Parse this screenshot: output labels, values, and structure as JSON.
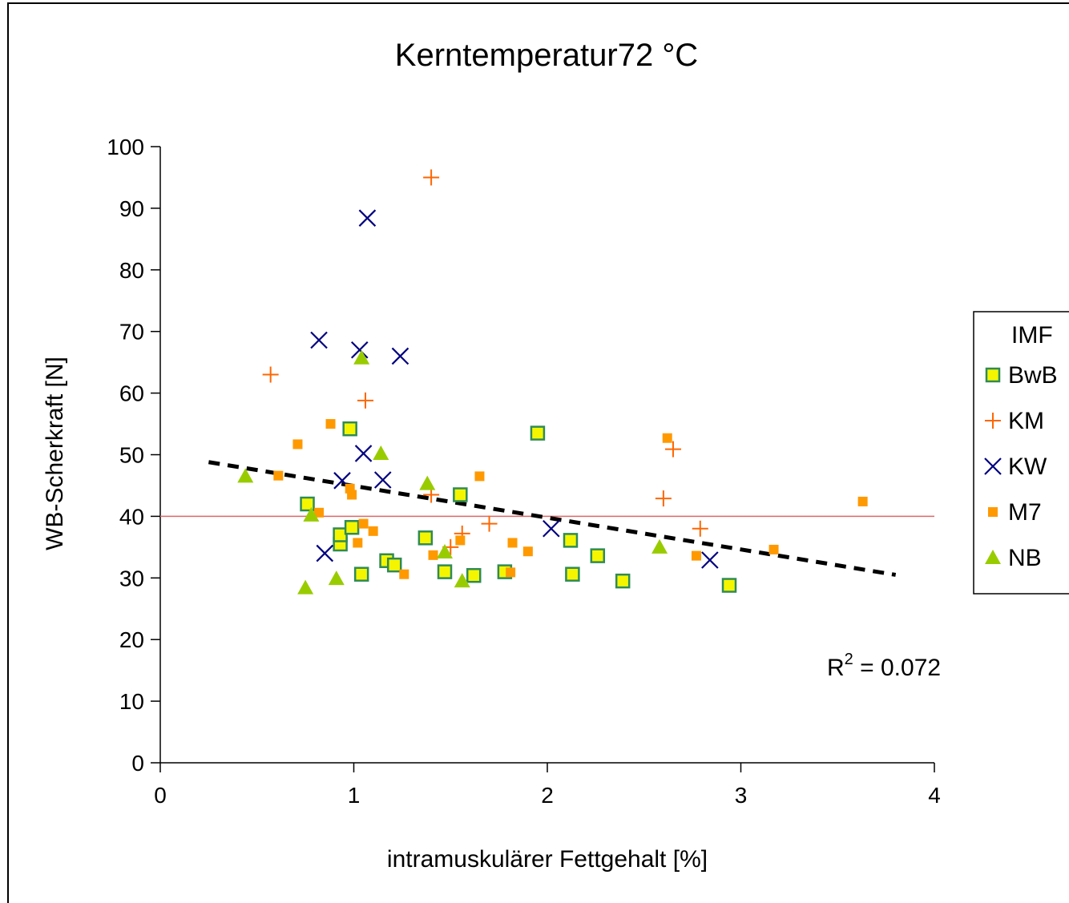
{
  "chart_data": {
    "type": "scatter",
    "title": "Kerntemperatur72 °C",
    "xlabel": "intramuskulärer Fettgehalt [%]",
    "ylabel": "WB-Scherkraft [N]",
    "xlim": [
      0,
      4
    ],
    "ylim": [
      0,
      100
    ],
    "x_ticks": [
      "0",
      "1",
      "2",
      "3",
      "4"
    ],
    "y_ticks": [
      "0",
      "10",
      "20",
      "30",
      "40",
      "50",
      "60",
      "70",
      "80",
      "90",
      "100"
    ],
    "grid": false,
    "legend": {
      "title": "IMF",
      "placement": "right"
    },
    "annotation": {
      "r_label": "R",
      "r_exponent": "2",
      "r_value": " = 0.072"
    },
    "reference_line": {
      "y": 40,
      "color": "#e06666"
    },
    "trendline": {
      "x": [
        0.25,
        3.8
      ],
      "y": [
        48.8,
        30.5
      ],
      "style": "dashed",
      "color": "#000000"
    },
    "series": [
      {
        "name": "BwB",
        "marker": "square",
        "color": "#f5f500",
        "edge_color": "#2e8b57",
        "x": [
          0.76,
          0.93,
          0.93,
          0.98,
          0.99,
          1.04,
          1.17,
          1.21,
          1.37,
          1.47,
          1.55,
          1.62,
          1.78,
          1.95,
          2.12,
          2.13,
          2.26,
          2.39,
          2.94
        ],
        "y": [
          42,
          35.5,
          37,
          54.2,
          38.2,
          30.6,
          32.8,
          32.1,
          36.5,
          31,
          43.5,
          30.4,
          31,
          53.5,
          36.1,
          30.6,
          33.6,
          29.5,
          28.8
        ]
      },
      {
        "name": "KM",
        "marker": "plus",
        "color": "#ff6600",
        "x": [
          0.57,
          1.06,
          1.4,
          1.4,
          1.5,
          1.56,
          1.7,
          2.6,
          2.65,
          2.79
        ],
        "y": [
          63,
          58.8,
          95,
          43.5,
          35,
          37.2,
          38.8,
          42.9,
          50.9,
          38
        ]
      },
      {
        "name": "KW",
        "marker": "x",
        "color": "#000080",
        "x": [
          0.82,
          0.85,
          0.94,
          1.03,
          1.05,
          1.07,
          1.15,
          1.24,
          2.02,
          2.84
        ],
        "y": [
          68.6,
          34,
          45.8,
          67,
          50.2,
          88.4,
          45.9,
          66,
          38,
          32.9
        ]
      },
      {
        "name": "M7",
        "marker": "square-small",
        "color": "#ff9900",
        "x": [
          0.61,
          0.71,
          0.82,
          0.88,
          0.98,
          0.99,
          1.02,
          1.05,
          1.1,
          1.26,
          1.41,
          1.55,
          1.65,
          1.81,
          1.82,
          1.9,
          2.62,
          2.77,
          3.17,
          3.63
        ],
        "y": [
          46.6,
          51.7,
          40.6,
          55,
          44.5,
          43.5,
          35.7,
          38.8,
          37.6,
          30.6,
          33.7,
          36.1,
          46.5,
          30.9,
          35.7,
          34.3,
          52.7,
          33.6,
          34.6,
          42.4
        ]
      },
      {
        "name": "NB",
        "marker": "triangle",
        "color": "#99cc00",
        "x": [
          0.44,
          0.75,
          0.78,
          0.91,
          1.04,
          1.14,
          1.38,
          1.47,
          1.56,
          2.58
        ],
        "y": [
          46.5,
          28.4,
          40.2,
          29.9,
          65.7,
          50.2,
          45.3,
          34.2,
          29.5,
          35
        ]
      }
    ]
  }
}
